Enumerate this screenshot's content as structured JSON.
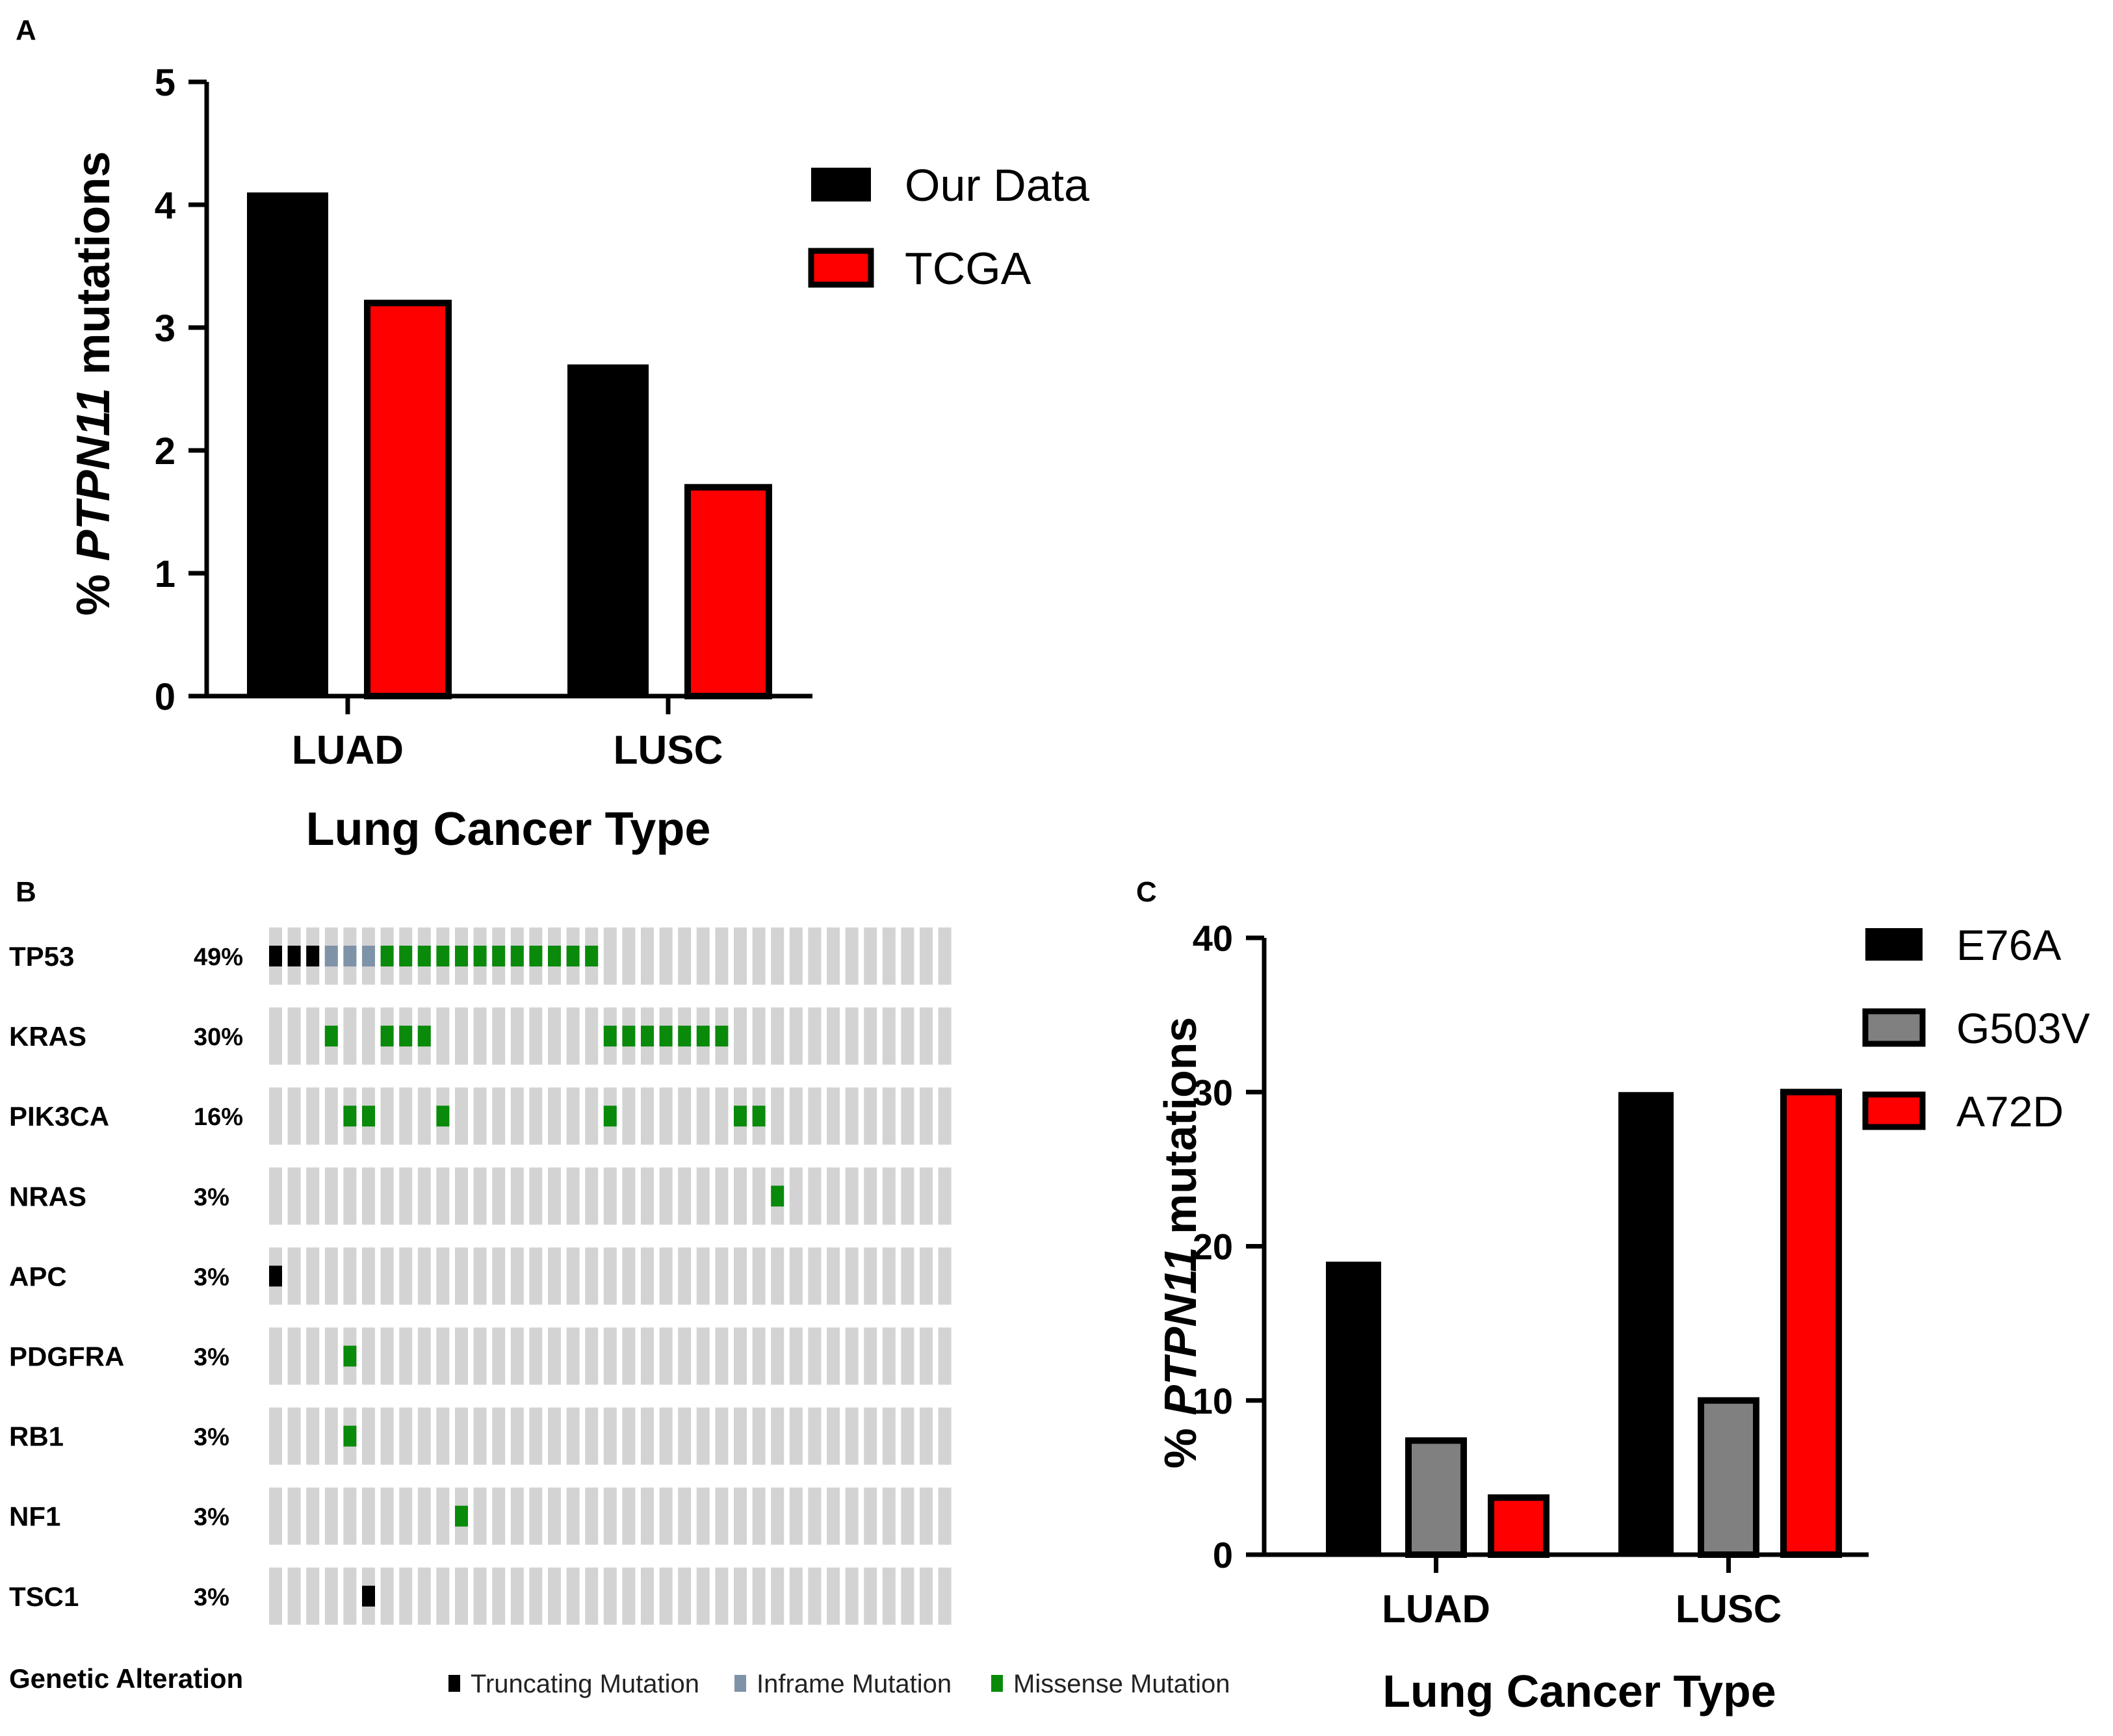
{
  "panels": {
    "a": "A",
    "b": "B",
    "c": "C"
  },
  "chart_data": [
    {
      "id": "A",
      "type": "bar",
      "categories": [
        "LUAD",
        "LUSC"
      ],
      "series": [
        {
          "name": "Our Data",
          "color": "#000000",
          "values": [
            4.1,
            2.7
          ]
        },
        {
          "name": "TCGA",
          "color": "#ff0000",
          "values": [
            3.2,
            1.7
          ]
        }
      ],
      "ylim": [
        0,
        5
      ],
      "yticks": [
        0,
        1,
        2,
        3,
        4,
        5
      ],
      "ylabel_prefix": "% ",
      "ylabel_gene": "PTPN11",
      "ylabel_suffix": " mutations",
      "xlabel": "Lung Cancer Type",
      "legend": "top-right"
    },
    {
      "id": "B",
      "type": "oncoprint",
      "genes": [
        {
          "name": "TP53",
          "pct": "49%",
          "alterations": [
            [
              0,
              "T"
            ],
            [
              1,
              "T"
            ],
            [
              2,
              "T"
            ],
            [
              3,
              "I"
            ],
            [
              4,
              "I"
            ],
            [
              5,
              "I"
            ],
            [
              6,
              "M"
            ],
            [
              7,
              "M"
            ],
            [
              8,
              "M"
            ],
            [
              9,
              "M"
            ],
            [
              10,
              "M"
            ],
            [
              11,
              "M"
            ],
            [
              12,
              "M"
            ],
            [
              13,
              "M"
            ],
            [
              14,
              "M"
            ],
            [
              15,
              "M"
            ],
            [
              16,
              "M"
            ],
            [
              17,
              "M"
            ]
          ]
        },
        {
          "name": "KRAS",
          "pct": "30%",
          "alterations": [
            [
              3,
              "M"
            ],
            [
              6,
              "M"
            ],
            [
              7,
              "M"
            ],
            [
              8,
              "M"
            ],
            [
              18,
              "M"
            ],
            [
              19,
              "M"
            ],
            [
              20,
              "M"
            ],
            [
              21,
              "M"
            ],
            [
              22,
              "M"
            ],
            [
              23,
              "M"
            ],
            [
              24,
              "M"
            ]
          ]
        },
        {
          "name": "PIK3CA",
          "pct": "16%",
          "alterations": [
            [
              4,
              "M"
            ],
            [
              5,
              "M"
            ],
            [
              9,
              "M"
            ],
            [
              18,
              "M"
            ],
            [
              25,
              "M"
            ],
            [
              26,
              "M"
            ]
          ]
        },
        {
          "name": "NRAS",
          "pct": "3%",
          "alterations": [
            [
              27,
              "M"
            ]
          ]
        },
        {
          "name": "APC",
          "pct": "3%",
          "alterations": [
            [
              0,
              "T"
            ]
          ]
        },
        {
          "name": "PDGFRA",
          "pct": "3%",
          "alterations": [
            [
              4,
              "M"
            ]
          ]
        },
        {
          "name": "RB1",
          "pct": "3%",
          "alterations": [
            [
              4,
              "M"
            ]
          ]
        },
        {
          "name": "NF1",
          "pct": "3%",
          "alterations": [
            [
              10,
              "M"
            ]
          ]
        },
        {
          "name": "TSC1",
          "pct": "3%",
          "alterations": [
            [
              5,
              "T"
            ]
          ]
        }
      ],
      "n_samples": 37,
      "legend_title": "Genetic Alteration",
      "legend": [
        {
          "code": "T",
          "label": "Truncating Mutation",
          "color": "#000000"
        },
        {
          "code": "I",
          "label": "Inframe Mutation",
          "color": "#7f93a8"
        },
        {
          "code": "M",
          "label": "Missense Mutation",
          "color": "#0a8a0a"
        }
      ],
      "empty_color": "#d3d3d3"
    },
    {
      "id": "C",
      "type": "bar",
      "categories": [
        "LUAD",
        "LUSC"
      ],
      "series": [
        {
          "name": "E76A",
          "color": "#000000",
          "values": [
            19,
            30
          ]
        },
        {
          "name": "G503V",
          "color": "#808080",
          "values": [
            7.4,
            10
          ]
        },
        {
          "name": "A72D",
          "color": "#ff0000",
          "values": [
            3.7,
            30
          ]
        }
      ],
      "ylim": [
        0,
        40
      ],
      "yticks": [
        0,
        10,
        20,
        30,
        40
      ],
      "ylabel_prefix": "% ",
      "ylabel_gene": "PTPN11",
      "ylabel_suffix": " mutations",
      "xlabel": "Lung Cancer Type",
      "legend": "top-right"
    }
  ]
}
